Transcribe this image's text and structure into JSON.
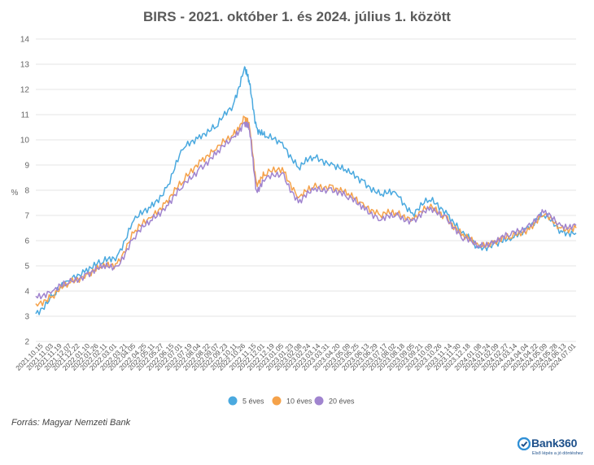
{
  "chart_data": {
    "type": "line",
    "title": "BIRS - 2021. október 1. és 2024. július 1. között",
    "xlabel": "",
    "ylabel": "%",
    "ylim": [
      2,
      14
    ],
    "yticks": [
      2,
      3,
      4,
      5,
      6,
      7,
      8,
      9,
      10,
      11,
      12,
      13,
      14
    ],
    "grid": true,
    "legend_position": "bottom-center",
    "x_start": "2021.10.01",
    "x_end": "2024.07.01",
    "x_tick_labels": [
      "2021.10.15",
      "2021.11.03",
      "2021.11.19",
      "2021.12.07",
      "2021.12.22",
      "2022.01.10",
      "2022.01.26",
      "2022.02.11",
      "2022.03.01",
      "2022.03.21",
      "2022.04.05",
      "2022.04.25",
      "2022.05.11",
      "2022.05.27",
      "2022.06.15",
      "2022.07.01",
      "2022.07.19",
      "2022.08.04",
      "2022.08.22",
      "2022.09.07",
      "2022.09.23",
      "2022.10.11",
      "2022.10.26",
      "2022.11.15",
      "2022.12.01",
      "2022.12.19",
      "2023.01.05",
      "2023.01.23",
      "2023.02.08",
      "2023.02.24",
      "2023.03.14",
      "2023.03.31",
      "2023.04.20",
      "2023.05.09",
      "2023.05.25",
      "2023.06.13",
      "2023.06.29",
      "2023.07.17",
      "2023.08.02",
      "2023.08.18",
      "2023.09.05",
      "2023.09.21",
      "2023.10.09",
      "2023.10.26",
      "2023.11.14",
      "2023.11.30",
      "2023.12.18",
      "2024.01.08",
      "2024.01.24",
      "2024.02.09",
      "2024.02.27",
      "2024.03.14",
      "2024.04.04",
      "2024.04.22",
      "2024.05.09",
      "2024.05.28",
      "2024.06.13",
      "2024.07.01"
    ],
    "x": [
      "2021.10.01",
      "2021.11.01",
      "2021.12.01",
      "2022.01.03",
      "2022.02.01",
      "2022.03.01",
      "2022.04.01",
      "2022.05.02",
      "2022.06.01",
      "2022.07.01",
      "2022.08.01",
      "2022.09.01",
      "2022.10.03",
      "2022.10.24",
      "2022.11.02",
      "2022.11.15",
      "2022.12.01",
      "2023.01.02",
      "2023.02.01",
      "2023.03.01",
      "2023.04.03",
      "2023.05.02",
      "2023.06.01",
      "2023.07.03",
      "2023.08.01",
      "2023.09.01",
      "2023.10.02",
      "2023.11.02",
      "2023.12.01",
      "2024.01.02",
      "2024.02.01",
      "2024.03.01",
      "2024.04.02",
      "2024.05.02",
      "2024.06.03",
      "2024.07.01"
    ],
    "series": [
      {
        "name": "5 éves",
        "color": "#4aa9df",
        "values": [
          3.1,
          3.8,
          4.4,
          4.9,
          5.1,
          5.4,
          6.8,
          7.3,
          8.1,
          9.6,
          10.2,
          10.5,
          11.4,
          12.9,
          12.2,
          10.5,
          10.1,
          9.9,
          8.9,
          9.3,
          9.1,
          8.7,
          8.4,
          7.8,
          7.9,
          7.1,
          7.6,
          7.2,
          6.3,
          5.7,
          5.9,
          6.0,
          6.6,
          7.0,
          6.4,
          6.3
        ]
      },
      {
        "name": "10 éves",
        "color": "#f5a24a",
        "values": [
          3.5,
          3.8,
          4.3,
          4.7,
          4.9,
          5.1,
          6.3,
          6.9,
          7.6,
          8.3,
          9.2,
          9.6,
          10.2,
          10.9,
          10.5,
          8.3,
          8.6,
          8.9,
          7.7,
          8.1,
          8.2,
          7.8,
          7.5,
          7.0,
          7.1,
          6.9,
          7.3,
          7.0,
          6.2,
          5.8,
          6.0,
          6.1,
          6.5,
          7.0,
          6.5,
          6.5
        ]
      },
      {
        "name": "20 éves",
        "color": "#a084cf",
        "values": [
          3.8,
          4.0,
          4.3,
          4.7,
          4.9,
          5.0,
          6.1,
          6.8,
          7.4,
          8.1,
          8.9,
          9.4,
          10.1,
          10.7,
          10.4,
          8.0,
          8.4,
          8.7,
          7.5,
          8.0,
          8.1,
          7.7,
          7.4,
          6.8,
          7.0,
          6.8,
          7.2,
          7.0,
          6.1,
          5.8,
          6.0,
          6.2,
          6.6,
          7.1,
          6.6,
          6.6
        ]
      }
    ]
  },
  "source_label": "Forrás: Magyar Nemzeti Bank",
  "brand": {
    "name": "Bank360",
    "tagline": "Első lépés a jó döntéshez",
    "logo_icon": "bank360-logo-icon"
  }
}
